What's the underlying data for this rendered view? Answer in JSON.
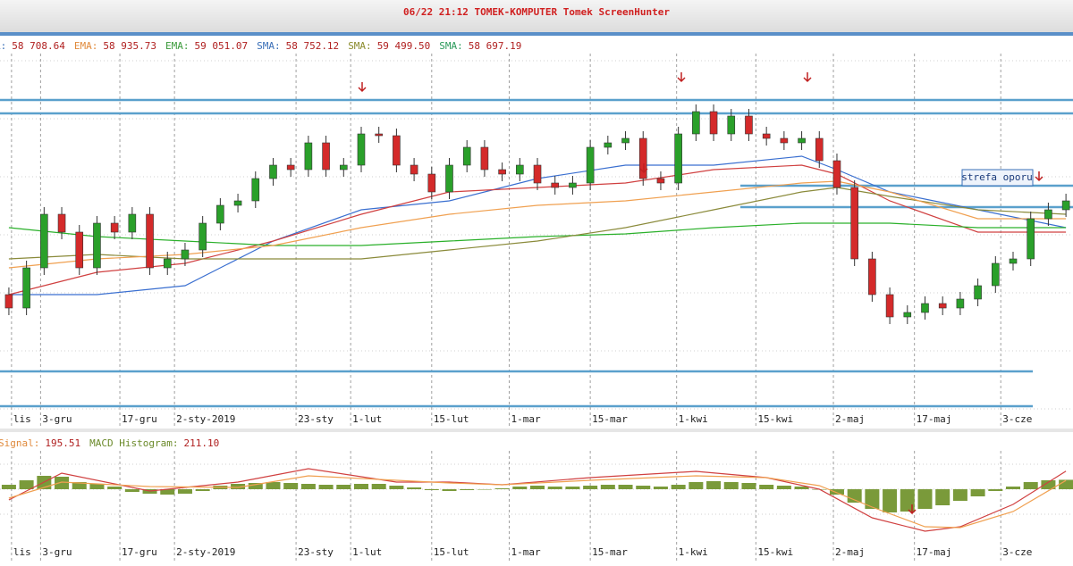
{
  "chart_data": {
    "type": "candlestick",
    "title": "06/22 21:12 TOMEK-KOMPUTER Tomek ScreenHunter",
    "indicator_legend": [
      {
        "label": "A:",
        "value": "58 708.64",
        "color": "#3a6fb7"
      },
      {
        "label": "EMA:",
        "value": "58 935.73",
        "color": "#e08a3c"
      },
      {
        "label": "EMA:",
        "value": "59 051.07",
        "color": "#3a9a3a"
      },
      {
        "label": "SMA:",
        "value": "58 752.12",
        "color": "#3a6fb7"
      },
      {
        "label": "SMA:",
        "value": "59 499.50",
        "color": "#8a8a2a"
      },
      {
        "label": "SMA:",
        "value": "58 697.19",
        "color": "#2a9a5a"
      }
    ],
    "annotation": "strefa oporu",
    "ylim": [
      54000,
      62760
    ],
    "xlim": [
      -0.25,
      60.4
    ],
    "xticks": [
      {
        "value": 0.15,
        "label": "lis"
      },
      {
        "value": 1.8,
        "label": "3-gru"
      },
      {
        "value": 6.3,
        "label": "17-gru"
      },
      {
        "value": 9.4,
        "label": "2-sty-2019"
      },
      {
        "value": 16.3,
        "label": "23-sty"
      },
      {
        "value": 19.4,
        "label": "1-lut"
      },
      {
        "value": 24,
        "label": "15-lut"
      },
      {
        "value": 28.4,
        "label": "1-mar"
      },
      {
        "value": 33,
        "label": "15-mar"
      },
      {
        "value": 37.9,
        "label": "1-kwi"
      },
      {
        "value": 42.4,
        "label": "15-kwi"
      },
      {
        "value": 46.8,
        "label": "2-maj"
      },
      {
        "value": 51.4,
        "label": "17-maj"
      },
      {
        "value": 56.3,
        "label": "3-cze"
      }
    ],
    "up_color": "#2aa02a",
    "down_color": "#d42a2a",
    "open": [
      56960,
      56660,
      57560,
      58760,
      58360,
      57560,
      58560,
      58360,
      58760,
      57560,
      57760,
      57960,
      58560,
      58960,
      59060,
      59560,
      59860,
      59760,
      60360,
      59760,
      59860,
      60560,
      60520,
      59860,
      59660,
      59260,
      59860,
      60260,
      59760,
      59660,
      59860,
      59460,
      59360,
      59460,
      60260,
      60360,
      60460,
      59560,
      59460,
      60560,
      61060,
      60560,
      60960,
      60560,
      60460,
      60360,
      60460,
      59960,
      59360,
      57760,
      56960,
      56460,
      56560,
      56760,
      56660,
      56860,
      57160,
      57660,
      57760,
      58660,
      58860
    ],
    "close": [
      56660,
      57560,
      58760,
      58360,
      57560,
      58560,
      58360,
      58760,
      57560,
      57760,
      57960,
      58560,
      58960,
      59060,
      59560,
      59860,
      59760,
      60360,
      59760,
      59860,
      60560,
      60520,
      59860,
      59660,
      59260,
      59860,
      60260,
      59760,
      59660,
      59860,
      59460,
      59360,
      59460,
      60260,
      60360,
      60460,
      59560,
      59460,
      60560,
      61060,
      60560,
      60960,
      60560,
      60460,
      60360,
      60460,
      59960,
      59360,
      57760,
      56960,
      56460,
      56560,
      56760,
      56660,
      56860,
      57160,
      57660,
      57760,
      58660,
      58860,
      59060
    ],
    "high": [
      57120,
      57720,
      58920,
      58920,
      58520,
      58720,
      58720,
      58920,
      58920,
      57920,
      58120,
      58720,
      59120,
      59220,
      59720,
      60020,
      60020,
      60520,
      60520,
      60020,
      60720,
      60720,
      60680,
      60020,
      59820,
      60020,
      60420,
      60420,
      59920,
      60020,
      60020,
      59620,
      59620,
      60420,
      60520,
      60620,
      60620,
      59720,
      60720,
      61220,
      61220,
      61120,
      61120,
      60720,
      60620,
      60620,
      60620,
      60120,
      59520,
      57920,
      57120,
      56720,
      56920,
      56920,
      57020,
      57320,
      57820,
      57920,
      58820,
      59020,
      59220
    ],
    "low": [
      56500,
      56500,
      57400,
      58200,
      57400,
      57400,
      58200,
      58200,
      57400,
      57400,
      57600,
      57800,
      58400,
      58800,
      58900,
      59400,
      59600,
      59600,
      59600,
      59600,
      59700,
      60360,
      59700,
      59500,
      59100,
      59100,
      59700,
      59600,
      59500,
      59500,
      59300,
      59200,
      59200,
      59300,
      60100,
      60200,
      59400,
      59300,
      59300,
      60400,
      60400,
      60400,
      60400,
      60300,
      60200,
      60200,
      59800,
      59200,
      57600,
      56800,
      56300,
      56300,
      56400,
      56500,
      56500,
      56700,
      57000,
      57500,
      57600,
      58500,
      58700
    ],
    "averages": [
      {
        "color": "#3a6fd0",
        "x": [
          0,
          5,
          10,
          15,
          20,
          25,
          30,
          35,
          40,
          45,
          47,
          50,
          55,
          60
        ],
        "values": [
          56960,
          56960,
          57160,
          58160,
          58860,
          59060,
          59560,
          59860,
          59860,
          60060,
          59760,
          59260,
          58860,
          58460
        ]
      },
      {
        "color": "#d04040",
        "x": [
          0,
          5,
          10,
          15,
          20,
          25,
          30,
          35,
          40,
          45,
          47,
          50,
          55,
          60
        ],
        "values": [
          56960,
          57460,
          57660,
          58160,
          58760,
          59260,
          59360,
          59460,
          59760,
          59860,
          59660,
          59060,
          58360,
          58360
        ]
      },
      {
        "color": "#2ab02a",
        "x": [
          0,
          5,
          10,
          15,
          20,
          25,
          30,
          35,
          40,
          45,
          47,
          50,
          55,
          60
        ],
        "values": [
          58460,
          58260,
          58160,
          58060,
          58060,
          58160,
          58260,
          58320,
          58460,
          58560,
          58560,
          58560,
          58460,
          58460
        ]
      },
      {
        "color": "#8a8a3a",
        "x": [
          0,
          5,
          10,
          15,
          20,
          25,
          30,
          35,
          40,
          45,
          47,
          50,
          55,
          60
        ],
        "values": [
          57760,
          57860,
          57760,
          57760,
          57760,
          57960,
          58160,
          58460,
          58860,
          59260,
          59360,
          59160,
          58860,
          58760
        ]
      },
      {
        "color": "#f0a050",
        "x": [
          0,
          5,
          10,
          15,
          20,
          25,
          30,
          35,
          40,
          45,
          47,
          50,
          55,
          60
        ],
        "values": [
          57560,
          57760,
          57860,
          58060,
          58460,
          58760,
          58960,
          59060,
          59260,
          59460,
          59500,
          59260,
          58660,
          58660
        ]
      }
    ],
    "levels": [
      61320,
      61020,
      59400,
      58920,
      55240,
      54460
    ],
    "level_color": "#5aa0cc",
    "macd": {
      "legend": [
        {
          "label": "Signal:",
          "value": "195.51",
          "color": "#e08a3c"
        },
        {
          "label": "MACD Histogram:",
          "value": "211.10",
          "color": "#6b8a2a"
        }
      ],
      "ylim": [
        -1200,
        900
      ],
      "histogram_color": "#7a9a3a",
      "histogram": [
        100,
        200,
        300,
        280,
        160,
        120,
        60,
        -60,
        -100,
        -120,
        -100,
        -40,
        80,
        120,
        140,
        160,
        140,
        120,
        100,
        100,
        120,
        120,
        80,
        40,
        -20,
        -40,
        -20,
        0,
        20,
        60,
        80,
        60,
        60,
        80,
        100,
        100,
        80,
        60,
        100,
        160,
        180,
        160,
        140,
        100,
        80,
        60,
        0,
        -120,
        -300,
        -440,
        -520,
        -500,
        -440,
        -360,
        -260,
        -160,
        -40,
        60,
        160,
        200,
        211.1
      ],
      "lines": [
        {
          "color": "#d04040",
          "x": [
            0,
            3,
            8,
            13,
            17,
            22,
            25,
            28,
            33,
            39,
            43,
            46,
            49,
            52,
            54,
            57,
            60
          ],
          "values": [
            -240,
            360,
            -40,
            160,
            460,
            160,
            160,
            100,
            260,
            400,
            260,
            0,
            -640,
            -940,
            -840,
            -340,
            406.61
          ]
        },
        {
          "color": "#f0a050",
          "x": [
            0,
            3,
            8,
            13,
            17,
            22,
            25,
            28,
            33,
            39,
            43,
            46,
            49,
            52,
            54,
            57,
            60
          ],
          "values": [
            -200,
            160,
            60,
            40,
            300,
            200,
            140,
            100,
            200,
            300,
            260,
            80,
            -400,
            -840,
            -860,
            -500,
            195.51
          ]
        }
      ]
    }
  }
}
